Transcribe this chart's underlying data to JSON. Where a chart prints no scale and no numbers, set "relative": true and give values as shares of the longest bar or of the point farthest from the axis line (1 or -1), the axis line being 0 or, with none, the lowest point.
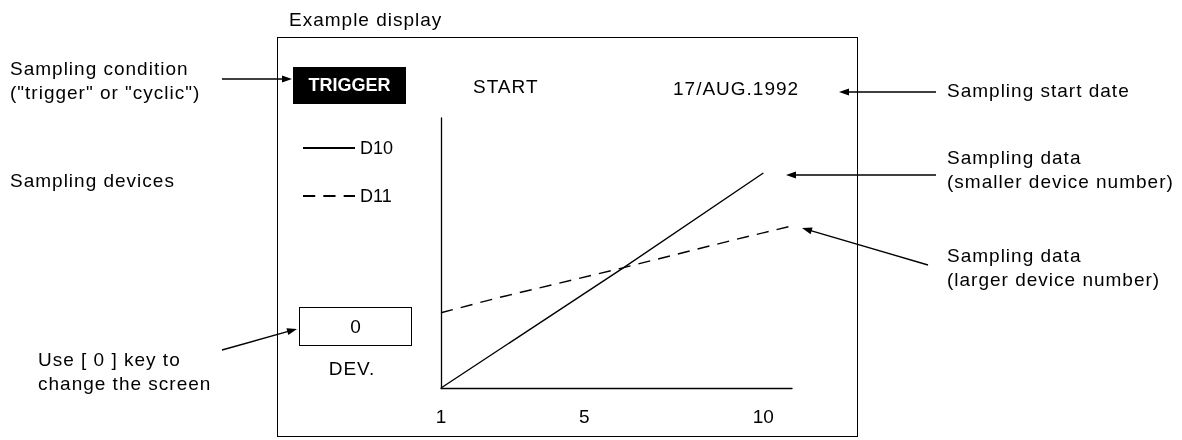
{
  "chart_data": {
    "type": "line",
    "title": "Example display",
    "relative": true,
    "xlim": [
      1,
      10.8
    ],
    "xticks": [
      1,
      5,
      10
    ],
    "grid": false,
    "legend": "left",
    "marker": "none",
    "series": [
      {
        "name": "D10",
        "color": "#000000",
        "line_style": "solid",
        "x": [
          1,
          6.1,
          10
        ],
        "values": [
          0,
          0.56,
          1
        ]
      },
      {
        "name": "D11",
        "color": "#000000",
        "line_style": "dashed",
        "x": [
          1,
          2.6,
          6.1,
          9.2,
          10.7
        ],
        "values": [
          0.35,
          0.42,
          0.56,
          0.69,
          0.75
        ]
      }
    ],
    "annotations": [
      "TRIGGER",
      "START",
      "17/AUG.1992",
      "0",
      "DEV.",
      "Sampling condition\n(\"trigger\" or \"cyclic\")",
      "Sampling devices",
      "Use [ 0 ] key to\nchange the screen",
      "Sampling start date",
      "Sampling data\n(smaller device number)",
      "Sampling data\n(larger device number)"
    ]
  }
}
